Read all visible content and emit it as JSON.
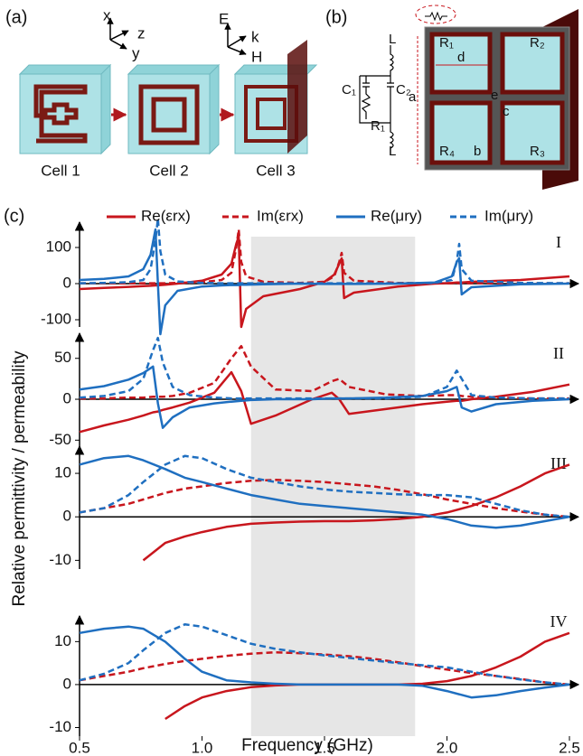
{
  "panel_a": {
    "label": "(a)",
    "cells": [
      "Cell 1",
      "Cell 2",
      "Cell 3"
    ],
    "axes_cell1": [
      "x",
      "z",
      "y"
    ],
    "axes_cell3": [
      "E",
      "k",
      "H"
    ]
  },
  "panel_b": {
    "label": "(b)",
    "circuit": [
      "L",
      "C₁",
      "C₂",
      "R₁",
      "L"
    ],
    "unit_cell": [
      "R₁",
      "R₂",
      "R₃",
      "R₄",
      "d",
      "a",
      "b",
      "c",
      "e"
    ]
  },
  "panel_c": {
    "label": "(c)",
    "xlabel": "Frequency (GHz)",
    "ylabel": "Relative permittivity / permeability"
  },
  "chart_data": [
    {
      "type": "line",
      "label": "I",
      "x": [
        0.5,
        0.6,
        0.7,
        0.76,
        0.79,
        0.81,
        0.82,
        0.83,
        0.85,
        0.9,
        1.0,
        1.08,
        1.12,
        1.14,
        1.15,
        1.16,
        1.18,
        1.25,
        1.4,
        1.5,
        1.54,
        1.56,
        1.57,
        1.58,
        1.62,
        1.8,
        1.95,
        2.02,
        2.04,
        2.05,
        2.06,
        2.1,
        2.3,
        2.5
      ],
      "series": [
        {
          "name": "Re(εrx)",
          "color": "#c8161d",
          "dash": false,
          "values": [
            -15,
            -12,
            -9,
            -7,
            -6,
            -5,
            -5,
            -4,
            -3,
            0,
            8,
            25,
            55,
            110,
            130,
            -120,
            -70,
            -35,
            -15,
            5,
            25,
            55,
            70,
            -40,
            -25,
            -8,
            0,
            2,
            3,
            3,
            3,
            5,
            10,
            20
          ]
        },
        {
          "name": "Im(εrx)",
          "color": "#c8161d",
          "dash": true,
          "values": [
            1,
            1,
            1,
            1,
            1,
            1,
            1,
            1,
            1,
            2,
            4,
            10,
            30,
            100,
            150,
            60,
            20,
            5,
            2,
            5,
            20,
            60,
            85,
            30,
            8,
            2,
            1,
            1,
            1,
            1,
            1,
            1,
            1,
            1
          ]
        },
        {
          "name": "Re(μry)",
          "color": "#1f6fc0",
          "dash": false,
          "values": [
            10,
            13,
            20,
            40,
            80,
            150,
            0,
            -140,
            -60,
            -20,
            -8,
            -5,
            -4,
            -4,
            -4,
            -3,
            -3,
            -2,
            0,
            -1,
            -1,
            -1,
            -1,
            -1,
            -1,
            0,
            3,
            20,
            60,
            70,
            -30,
            -10,
            -2,
            0
          ]
        },
        {
          "name": "Im(μry)",
          "color": "#1f6fc0",
          "dash": true,
          "values": [
            1,
            2,
            4,
            10,
            40,
            120,
            180,
            90,
            25,
            6,
            2,
            1,
            1,
            1,
            1,
            1,
            1,
            1,
            1,
            1,
            1,
            1,
            1,
            1,
            1,
            1,
            2,
            10,
            60,
            110,
            40,
            8,
            2,
            1
          ]
        }
      ],
      "xlim": [
        0.5,
        2.5
      ],
      "ylim": [
        -120,
        155
      ],
      "yticks": [
        -100,
        0,
        100
      ],
      "highlight_x": [
        1.2,
        1.87
      ]
    },
    {
      "type": "line",
      "label": "II",
      "x": [
        0.5,
        0.6,
        0.7,
        0.76,
        0.8,
        0.82,
        0.84,
        0.88,
        0.95,
        1.05,
        1.12,
        1.16,
        1.2,
        1.3,
        1.45,
        1.53,
        1.56,
        1.6,
        1.75,
        1.9,
        2.0,
        2.04,
        2.06,
        2.1,
        2.2,
        2.35,
        2.5
      ],
      "series": [
        {
          "color": "#c8161d",
          "dash": false,
          "values": [
            -40,
            -32,
            -25,
            -20,
            -16,
            -15,
            -13,
            -10,
            -4,
            8,
            33,
            10,
            -30,
            -20,
            0,
            8,
            0,
            -18,
            -12,
            -6,
            -3,
            -2,
            -2,
            0,
            3,
            9,
            18
          ]
        },
        {
          "color": "#c8161d",
          "dash": true,
          "values": [
            1,
            1,
            2,
            2,
            3,
            3,
            3,
            4,
            8,
            20,
            50,
            65,
            40,
            12,
            10,
            22,
            25,
            15,
            6,
            4,
            5,
            5,
            4,
            3,
            2,
            1,
            1
          ]
        },
        {
          "color": "#1f6fc0",
          "dash": false,
          "values": [
            12,
            16,
            24,
            32,
            40,
            -5,
            -35,
            -22,
            -10,
            -5,
            -3,
            -2,
            -1,
            0,
            0,
            1,
            1,
            1,
            2,
            4,
            10,
            15,
            -10,
            -15,
            -6,
            -2,
            0
          ]
        },
        {
          "color": "#1f6fc0",
          "dash": true,
          "values": [
            2,
            4,
            10,
            25,
            60,
            75,
            45,
            15,
            5,
            2,
            1,
            1,
            1,
            1,
            1,
            1,
            1,
            1,
            1,
            3,
            15,
            35,
            25,
            5,
            2,
            1,
            1
          ]
        }
      ],
      "xlim": [
        0.5,
        2.5
      ],
      "ylim": [
        -64,
        74
      ],
      "yticks": [
        -50,
        0,
        50
      ],
      "highlight_x": [
        1.2,
        1.87
      ]
    },
    {
      "type": "line",
      "label": "III",
      "x": [
        0.5,
        0.6,
        0.7,
        0.76,
        0.85,
        0.93,
        1.0,
        1.1,
        1.2,
        1.3,
        1.4,
        1.5,
        1.6,
        1.7,
        1.8,
        1.9,
        2.0,
        2.1,
        2.2,
        2.3,
        2.4,
        2.5
      ],
      "series": [
        {
          "color": "#c8161d",
          "dash": false,
          "values": [
            null,
            null,
            null,
            -10,
            -6,
            -4.5,
            -3.5,
            -2.3,
            -1.6,
            -1.3,
            -1.1,
            -1,
            -1,
            -0.8,
            -0.5,
            0,
            1,
            2.5,
            4.5,
            7,
            10,
            12
          ]
        },
        {
          "color": "#c8161d",
          "dash": true,
          "values": [
            1,
            2,
            3,
            4,
            5.5,
            6.5,
            7,
            7.8,
            8.3,
            8.5,
            8.3,
            8,
            7.5,
            7,
            6.2,
            5.2,
            4,
            3,
            2,
            1.2,
            0.5,
            0
          ]
        },
        {
          "color": "#1f6fc0",
          "dash": false,
          "values": [
            12,
            13.5,
            14,
            13,
            11,
            9,
            8,
            6.5,
            5,
            4,
            3,
            2.5,
            2,
            1.5,
            1,
            0.5,
            -0.5,
            -2,
            -2.5,
            -2,
            -1,
            0
          ]
        },
        {
          "color": "#1f6fc0",
          "dash": true,
          "values": [
            1,
            2,
            5,
            8,
            12,
            14,
            13.5,
            11,
            9,
            8,
            7,
            6.3,
            5.8,
            5.5,
            5.2,
            5,
            5,
            4.5,
            3,
            1.5,
            0.5,
            0
          ]
        }
      ],
      "xlim": [
        0.5,
        2.5
      ],
      "ylim": [
        -12,
        15
      ],
      "yticks": [
        -10,
        0,
        10
      ],
      "highlight_x": [
        1.2,
        1.87
      ]
    },
    {
      "type": "line",
      "label": "IV",
      "x": [
        0.5,
        0.6,
        0.7,
        0.76,
        0.85,
        0.93,
        1.0,
        1.1,
        1.2,
        1.3,
        1.4,
        1.5,
        1.6,
        1.7,
        1.8,
        1.9,
        2.0,
        2.1,
        2.2,
        2.3,
        2.4,
        2.5
      ],
      "series": [
        {
          "color": "#c8161d",
          "dash": false,
          "values": [
            null,
            null,
            null,
            null,
            -8,
            -5,
            -3,
            -1.5,
            -0.6,
            -0.2,
            0,
            0,
            0,
            0,
            0,
            0.2,
            0.8,
            2,
            4,
            6.5,
            10,
            12
          ]
        },
        {
          "color": "#c8161d",
          "dash": true,
          "values": [
            1,
            2,
            3,
            3.8,
            4.8,
            5.5,
            6,
            6.7,
            7.2,
            7.5,
            7.3,
            7,
            6.6,
            6,
            5.2,
            4.3,
            3.5,
            2.7,
            2,
            1.3,
            0.5,
            0
          ]
        },
        {
          "color": "#1f6fc0",
          "dash": false,
          "values": [
            12,
            13,
            13.5,
            13,
            10,
            6,
            3,
            1,
            0.5,
            0.2,
            0,
            0,
            0,
            0,
            0,
            -0.3,
            -1.5,
            -3,
            -2.5,
            -1.5,
            -0.7,
            0
          ]
        },
        {
          "color": "#1f6fc0",
          "dash": true,
          "values": [
            1,
            2.5,
            5,
            8,
            12,
            14,
            13.5,
            11.5,
            9.5,
            8.3,
            7.5,
            6.8,
            6.2,
            5.6,
            5,
            4.5,
            4,
            3,
            2,
            1.2,
            0.5,
            0
          ]
        }
      ],
      "xlim": [
        0.5,
        2.5
      ],
      "ylim": [
        -12,
        14.7
      ],
      "yticks": [
        -10,
        0,
        10
      ],
      "highlight_x": [
        1.2,
        1.87
      ],
      "xticks": [
        0.5,
        {
          "value": 1.0,
          "label": "1.0"
        },
        1.5,
        {
          "value": 2.0,
          "label": "2.0"
        },
        2.5
      ]
    }
  ]
}
